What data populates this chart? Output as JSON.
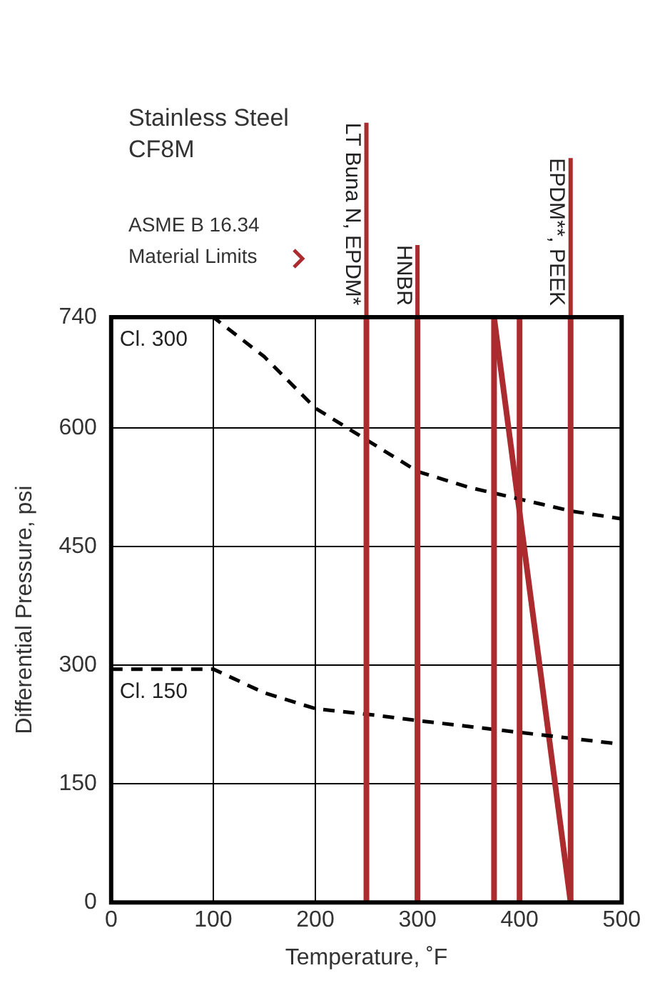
{
  "chart_data": {
    "type": "line",
    "title": "Stainless Steel CF8M",
    "xlabel": "Temperature, ˚F",
    "ylabel": "Differential Pressure, psi",
    "annotations": [
      "ASME B 16.34 Material Limits"
    ],
    "series": [
      {
        "name": "Cl. 300",
        "color": "#000000",
        "line_style": "dashed",
        "x": [
          0,
          100,
          150,
          200,
          250,
          300,
          350,
          400,
          450,
          500
        ],
        "values": [
          740,
          740,
          690,
          625,
          585,
          545,
          525,
          510,
          495,
          485
        ]
      },
      {
        "name": "Cl. 150",
        "color": "#000000",
        "line_style": "dashed",
        "x": [
          0,
          100,
          150,
          200,
          250,
          300,
          400,
          500
        ],
        "values": [
          295,
          295,
          265,
          245,
          238,
          230,
          215,
          200
        ]
      },
      {
        "color": "#ab2b2f",
        "line_style": "solid",
        "x": [
          375,
          450
        ],
        "values": [
          740,
          0
        ]
      }
    ],
    "ref_lines": [
      {
        "axis": "x",
        "value": 250,
        "label": "LT Buna N, EPDM*",
        "color": "#ab2b2f"
      },
      {
        "axis": "x",
        "value": 300,
        "label": "HNBR",
        "color": "#ab2b2f"
      },
      {
        "axis": "x",
        "value": 375,
        "color": "#ab2b2f"
      },
      {
        "axis": "x",
        "value": 400,
        "color": "#ab2b2f"
      },
      {
        "axis": "x",
        "value": 450,
        "label": "EPDM**, PEEK",
        "color": "#ab2b2f"
      }
    ],
    "xlim": [
      0,
      500
    ],
    "xticks": [
      0,
      100,
      200,
      300,
      400,
      500
    ],
    "ylim": [
      0,
      740
    ],
    "yticks": [
      0,
      150,
      300,
      450,
      600,
      740
    ],
    "grid": true,
    "legend": false,
    "marker": "none"
  }
}
